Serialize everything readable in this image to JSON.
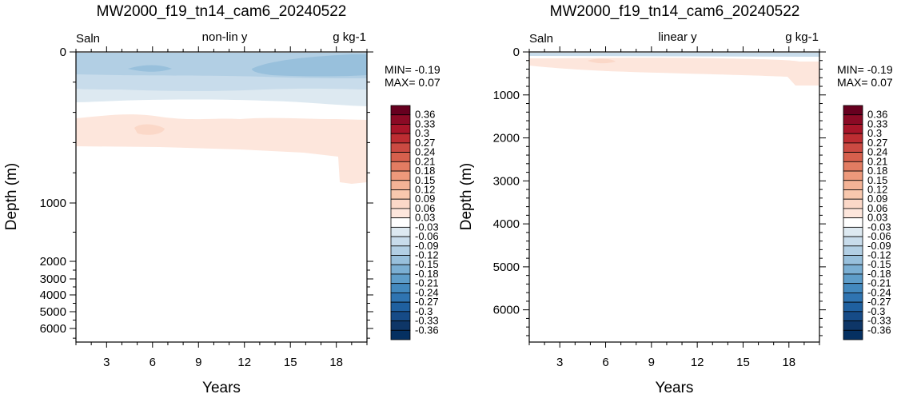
{
  "chart_data": [
    {
      "type": "heatmap",
      "title": "MW2000_f19_tn14_cam6_20240522",
      "variable": "Saln",
      "scale_label": "non-lin y",
      "units": "g kg-1",
      "xlabel": "Years",
      "ylabel": "Depth (m)",
      "x_ticks": [
        3,
        6,
        9,
        12,
        15,
        18
      ],
      "xlim": [
        1,
        20
      ],
      "y_tick_labels": [
        "0",
        "1000",
        "2000",
        "3000",
        "4000",
        "5000",
        "6000"
      ],
      "y_scale": "non-linear (upper ocean stretched)",
      "y_invert": true,
      "min_label": "MIN= -0.19",
      "max_label": "MAX=  0.07",
      "min": -0.19,
      "max": 0.07,
      "fields": [
        {
          "level": -0.03,
          "color": "#dde9f1",
          "region": "upper band near surface"
        },
        {
          "level": -0.06,
          "color": "#c8dceb",
          "region": "upper band near surface"
        },
        {
          "level": -0.09,
          "color": "#b2cfe4",
          "region": "upper band core"
        },
        {
          "level": -0.12,
          "color": "#98c0dc",
          "region": "upper band years 15-20"
        },
        {
          "level": 0.03,
          "color": "#fde6dc",
          "region": "subsurface band, years 1-20"
        },
        {
          "level": 0.06,
          "color": "#fbd8c8",
          "region": "small patch near year 6"
        }
      ]
    },
    {
      "type": "heatmap",
      "title": "MW2000_f19_tn14_cam6_20240522",
      "variable": "Saln",
      "scale_label": "linear y",
      "units": "g kg-1",
      "xlabel": "Years",
      "ylabel": "Depth (m)",
      "x_ticks": [
        3,
        6,
        9,
        12,
        15,
        18
      ],
      "xlim": [
        1,
        20
      ],
      "y_ticks": [
        0,
        1000,
        2000,
        3000,
        4000,
        5000,
        6000
      ],
      "ylim": [
        0,
        6750
      ],
      "y_invert": true,
      "min_label": "MIN= -0.19",
      "max_label": "MAX=  0.07",
      "min": -0.19,
      "max": 0.07,
      "fields": [
        {
          "level": -0.06,
          "color": "#c8dceb",
          "region": "thin surface band"
        },
        {
          "level": 0.03,
          "color": "#fde6dc",
          "region": "band ~200-400 m, deeper at year 19-20"
        },
        {
          "level": 0.06,
          "color": "#fbd8c8",
          "region": "small patch near year 6"
        }
      ]
    }
  ],
  "colorbar": {
    "labels": [
      "0.36",
      "0.33",
      "0.3",
      "0.27",
      "0.24",
      "0.21",
      "0.18",
      "0.15",
      "0.12",
      "0.09",
      "0.06",
      "0.03",
      "-0.03",
      "-0.06",
      "-0.09",
      "-0.12",
      "-0.15",
      "-0.18",
      "-0.21",
      "-0.24",
      "-0.27",
      "-0.3",
      "-0.33",
      "-0.36"
    ],
    "colors": [
      "#67001f",
      "#8b0a25",
      "#a81529",
      "#bd2d32",
      "#cb4a42",
      "#d6604d",
      "#e27c62",
      "#ed997b",
      "#f4b396",
      "#f8c8ae",
      "#fbd8c8",
      "#fde6dc",
      "#ffffff",
      "#dde9f1",
      "#c8dceb",
      "#b2cfe4",
      "#98c0dc",
      "#7bafd3",
      "#5e9dc9",
      "#4389be",
      "#2f74b1",
      "#1f609f",
      "#164b87",
      "#0e3667",
      "#053061"
    ]
  }
}
